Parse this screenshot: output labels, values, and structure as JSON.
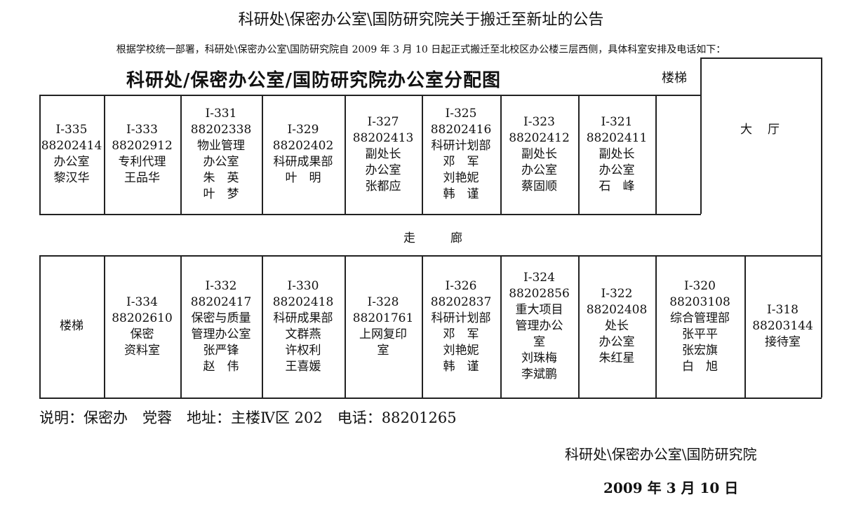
{
  "header": {
    "title": "科研处\\保密办公室\\国防研究院关于搬迁至新址的公告",
    "intro": "根据学校统一部署，科研处\\保密办公室\\国防研究院自 2009 年 3 月 10 日起正式搬迁至北校区办公楼三层西侧，具体科室安排及电话如下："
  },
  "plan": {
    "title": "科研处/保密办公室/国防研究院办公室分配图",
    "stairs_top": "楼梯",
    "hall": "大厅",
    "corridor": "走廊",
    "top_row": [
      {
        "lines": [
          "I-335",
          "88202414",
          "办公室",
          "黎汉华"
        ]
      },
      {
        "lines": [
          "I-333",
          "88202912",
          "专利代理",
          "王品华"
        ]
      },
      {
        "lines": [
          "I-331",
          "88202338",
          "物业管理",
          "办公室",
          "朱　英",
          "叶　梦"
        ]
      },
      {
        "lines": [
          "I-329",
          "88202402",
          "科研成果部",
          "叶　明"
        ]
      },
      {
        "lines": [
          "I-327",
          "88202413",
          "副处长",
          "办公室",
          "张都应"
        ]
      },
      {
        "lines": [
          "I-325",
          "88202416",
          "科研计划部",
          "邓　军",
          "刘艳妮",
          "韩　谨"
        ]
      },
      {
        "lines": [
          "I-323",
          "88202412",
          "副处长",
          "办公室",
          "蔡固顺"
        ]
      },
      {
        "lines": [
          "I-321",
          "88202411",
          "副处长",
          "办公室",
          "石　峰"
        ]
      },
      {
        "lines": []
      }
    ],
    "bottom_row": [
      {
        "lines": [
          "楼梯"
        ]
      },
      {
        "lines": [
          "I-334",
          "88202610",
          "保密",
          "资料室"
        ]
      },
      {
        "lines": [
          "I-332",
          "88202417",
          "保密与质量",
          "管理办公室",
          "张严锋",
          "赵　伟"
        ]
      },
      {
        "lines": [
          "I-330",
          "88202418",
          "科研成果部",
          "文群燕",
          "许权利",
          "王喜媛"
        ]
      },
      {
        "lines": [
          "I-328",
          "88201761",
          "上网复印",
          "室"
        ]
      },
      {
        "lines": [
          "I-326",
          "88202837",
          "科研计划部",
          "邓　军",
          "刘艳妮",
          "韩　谨"
        ]
      },
      {
        "lines": [
          "I-324",
          "88202856",
          "重大项目",
          "管理办公",
          "室",
          "刘珠梅",
          "李斌鹏"
        ]
      },
      {
        "lines": [
          "I-322",
          "88202408",
          "处长",
          "办公室",
          "朱红星"
        ]
      },
      {
        "lines": [
          "I-320",
          "88203108",
          "综合管理部",
          "张平平",
          "张宏旗",
          "白　旭"
        ]
      },
      {
        "lines": [
          "I-318",
          "88203144",
          "接待室"
        ]
      }
    ]
  },
  "footer": {
    "note": "说明：保密办　党蓉　地址：主楼Ⅳ区 202　电话：88201265",
    "signature": "科研处\\保密办公室\\国防研究院",
    "date": "2009 年 3 月 10 日"
  }
}
